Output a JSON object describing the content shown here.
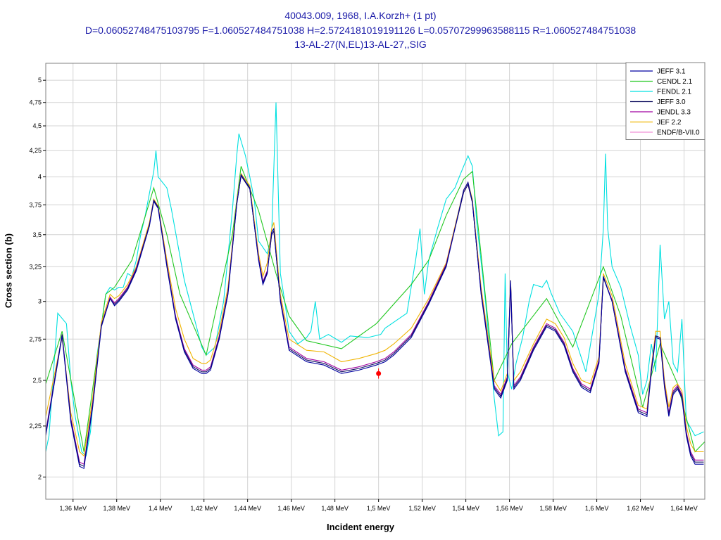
{
  "title_lines": [
    "40043.009, 1968, I.A.Korzh+ (1 pt)",
    "D=0.06052748475103795 F=1.060527484751038 H=2.5724181019191126 L=0.05707299963588115 R=1.060527484751038",
    "13-AL-27(N,EL)13-AL-27,,SIG"
  ],
  "chart_data": {
    "type": "line",
    "title": "40043.009, 1968, I.A.Korzh+ (1 pt)",
    "xlabel": "Incident energy",
    "ylabel": "Cross section (b)",
    "xlim": [
      1.3475,
      1.6495
    ],
    "ylim": [
      1.9,
      5.2
    ],
    "y_scale": "log",
    "grid": true,
    "legend_position": "top-right",
    "x_ticks": [
      1.36,
      1.38,
      1.4,
      1.42,
      1.44,
      1.46,
      1.48,
      1.5,
      1.52,
      1.54,
      1.56,
      1.58,
      1.6,
      1.62,
      1.64
    ],
    "x_tick_labels": [
      "1,36 MeV",
      "1,38 MeV",
      "1,4 MeV",
      "1,42 MeV",
      "1,44 MeV",
      "1,46 MeV",
      "1,48 MeV",
      "1,5 MeV",
      "1,52 MeV",
      "1,54 MeV",
      "1,56 MeV",
      "1,58 MeV",
      "1,6 MeV",
      "1,62 MeV",
      "1,64 MeV"
    ],
    "y_ticks": [
      2,
      2.25,
      2.5,
      2.75,
      3,
      3.25,
      3.5,
      3.75,
      4,
      4.25,
      4.5,
      4.75,
      5
    ],
    "y_tick_labels": [
      "2",
      "2,25",
      "2,5",
      "2,75",
      "3",
      "3,25",
      "3,5",
      "3,75",
      "4",
      "4,25",
      "4,5",
      "4,75",
      "5"
    ],
    "series": [
      {
        "name": "JEFF 3.1",
        "color": "#0000a0",
        "x": [
          1.3475,
          1.355,
          1.359,
          1.363,
          1.365,
          1.369,
          1.373,
          1.377,
          1.379,
          1.381,
          1.385,
          1.389,
          1.395,
          1.397,
          1.399,
          1.403,
          1.407,
          1.411,
          1.415,
          1.419,
          1.421,
          1.423,
          1.427,
          1.431,
          1.435,
          1.437,
          1.441,
          1.445,
          1.447,
          1.449,
          1.451,
          1.452,
          1.455,
          1.459,
          1.467,
          1.475,
          1.483,
          1.491,
          1.499,
          1.503,
          1.507,
          1.515,
          1.523,
          1.531,
          1.539,
          1.541,
          1.543,
          1.547,
          1.553,
          1.556,
          1.559,
          1.5605,
          1.562,
          1.565,
          1.571,
          1.577,
          1.581,
          1.585,
          1.589,
          1.593,
          1.597,
          1.601,
          1.603,
          1.607,
          1.613,
          1.619,
          1.623,
          1.625,
          1.627,
          1.629,
          1.631,
          1.633,
          1.635,
          1.637,
          1.639,
          1.641,
          1.643,
          1.645,
          1.649
        ],
        "y": [
          2.2,
          2.77,
          2.27,
          2.05,
          2.04,
          2.35,
          2.83,
          3.02,
          2.97,
          3.0,
          3.08,
          3.22,
          3.57,
          3.78,
          3.72,
          3.25,
          2.88,
          2.67,
          2.57,
          2.54,
          2.54,
          2.56,
          2.75,
          3.05,
          3.75,
          4.02,
          3.9,
          3.3,
          3.12,
          3.2,
          3.52,
          3.55,
          3.0,
          2.68,
          2.61,
          2.59,
          2.54,
          2.56,
          2.59,
          2.61,
          2.65,
          2.76,
          2.98,
          3.25,
          3.88,
          3.95,
          3.78,
          3.05,
          2.45,
          2.4,
          2.5,
          3.15,
          2.45,
          2.5,
          2.68,
          2.83,
          2.8,
          2.71,
          2.55,
          2.46,
          2.43,
          2.6,
          3.18,
          3.0,
          2.55,
          2.32,
          2.3,
          2.55,
          2.76,
          2.75,
          2.46,
          2.3,
          2.42,
          2.45,
          2.4,
          2.2,
          2.1,
          2.06,
          2.06
        ]
      },
      {
        "name": "CENDL 2.1",
        "color": "#22c822",
        "x": [
          1.3475,
          1.355,
          1.365,
          1.375,
          1.379,
          1.387,
          1.397,
          1.403,
          1.409,
          1.421,
          1.433,
          1.437,
          1.445,
          1.453,
          1.459,
          1.467,
          1.483,
          1.499,
          1.515,
          1.523,
          1.531,
          1.539,
          1.543,
          1.553,
          1.561,
          1.577,
          1.589,
          1.603,
          1.611,
          1.621,
          1.629,
          1.637,
          1.645,
          1.6495
        ],
        "y": [
          2.48,
          2.8,
          2.12,
          3.05,
          3.1,
          3.3,
          3.9,
          3.5,
          3.05,
          2.65,
          3.5,
          4.1,
          3.7,
          3.2,
          2.9,
          2.74,
          2.69,
          2.85,
          3.12,
          3.3,
          3.66,
          3.98,
          4.05,
          2.5,
          2.72,
          3.02,
          2.7,
          3.25,
          2.9,
          2.35,
          2.72,
          2.48,
          2.12,
          2.17
        ]
      },
      {
        "name": "FENDL 2.1",
        "color": "#00e0e0",
        "x": [
          1.3475,
          1.349,
          1.353,
          1.357,
          1.359,
          1.361,
          1.364,
          1.366,
          1.368,
          1.371,
          1.375,
          1.377,
          1.379,
          1.381,
          1.383,
          1.385,
          1.387,
          1.389,
          1.391,
          1.393,
          1.395,
          1.397,
          1.398,
          1.399,
          1.403,
          1.405,
          1.411,
          1.419,
          1.421,
          1.425,
          1.429,
          1.433,
          1.435,
          1.436,
          1.439,
          1.441,
          1.443,
          1.445,
          1.449,
          1.451,
          1.453,
          1.455,
          1.457,
          1.459,
          1.463,
          1.467,
          1.469,
          1.471,
          1.473,
          1.477,
          1.483,
          1.487,
          1.495,
          1.501,
          1.503,
          1.509,
          1.513,
          1.517,
          1.519,
          1.521,
          1.523,
          1.527,
          1.531,
          1.535,
          1.537,
          1.539,
          1.541,
          1.543,
          1.545,
          1.549,
          1.553,
          1.555,
          1.557,
          1.558,
          1.559,
          1.561,
          1.563,
          1.566,
          1.569,
          1.571,
          1.575,
          1.577,
          1.579,
          1.583,
          1.589,
          1.595,
          1.601,
          1.603,
          1.604,
          1.605,
          1.607,
          1.611,
          1.615,
          1.619,
          1.621,
          1.623,
          1.625,
          1.627,
          1.629,
          1.631,
          1.633,
          1.635,
          1.637,
          1.639,
          1.641,
          1.645,
          1.649
        ],
        "y": [
          2.12,
          2.2,
          2.92,
          2.85,
          2.5,
          2.3,
          2.12,
          2.1,
          2.22,
          2.65,
          3.05,
          3.1,
          3.08,
          3.1,
          3.1,
          3.2,
          3.18,
          3.3,
          3.5,
          3.65,
          3.85,
          4.05,
          4.25,
          4.0,
          3.9,
          3.72,
          3.15,
          2.7,
          2.65,
          2.7,
          3.0,
          3.7,
          4.2,
          4.42,
          4.2,
          4.0,
          3.8,
          3.45,
          3.35,
          3.5,
          4.75,
          3.2,
          3.0,
          2.8,
          2.72,
          2.76,
          2.8,
          3.0,
          2.75,
          2.78,
          2.73,
          2.77,
          2.76,
          2.78,
          2.82,
          2.88,
          2.92,
          3.3,
          3.55,
          3.05,
          3.3,
          3.55,
          3.8,
          3.9,
          4.0,
          4.1,
          4.2,
          4.1,
          3.6,
          3.0,
          2.4,
          2.2,
          2.22,
          3.2,
          2.55,
          2.45,
          2.6,
          2.76,
          3.0,
          3.12,
          3.1,
          3.15,
          3.06,
          2.92,
          2.8,
          2.55,
          3.05,
          3.55,
          4.22,
          3.55,
          3.25,
          3.1,
          2.85,
          2.65,
          2.42,
          2.5,
          2.72,
          2.55,
          3.42,
          2.88,
          3.0,
          2.6,
          2.55,
          2.88,
          2.28,
          2.2,
          2.22
        ]
      },
      {
        "name": "JEFF 3.0",
        "color": "#101060",
        "x": [
          1.3475,
          1.355,
          1.359,
          1.363,
          1.365,
          1.369,
          1.373,
          1.377,
          1.379,
          1.381,
          1.385,
          1.389,
          1.395,
          1.397,
          1.399,
          1.403,
          1.407,
          1.411,
          1.415,
          1.419,
          1.421,
          1.423,
          1.427,
          1.431,
          1.435,
          1.437,
          1.441,
          1.445,
          1.447,
          1.449,
          1.451,
          1.452,
          1.455,
          1.459,
          1.467,
          1.475,
          1.483,
          1.491,
          1.499,
          1.503,
          1.507,
          1.515,
          1.523,
          1.531,
          1.539,
          1.541,
          1.543,
          1.547,
          1.553,
          1.556,
          1.559,
          1.5605,
          1.562,
          1.565,
          1.571,
          1.577,
          1.581,
          1.585,
          1.589,
          1.593,
          1.597,
          1.601,
          1.603,
          1.607,
          1.613,
          1.619,
          1.623,
          1.625,
          1.627,
          1.629,
          1.631,
          1.633,
          1.635,
          1.637,
          1.639,
          1.641,
          1.643,
          1.645,
          1.649
        ],
        "y": [
          2.21,
          2.78,
          2.28,
          2.06,
          2.05,
          2.36,
          2.84,
          3.02,
          2.98,
          3.01,
          3.09,
          3.23,
          3.58,
          3.79,
          3.73,
          3.26,
          2.89,
          2.68,
          2.58,
          2.55,
          2.55,
          2.57,
          2.76,
          3.06,
          3.76,
          4.01,
          3.89,
          3.31,
          3.13,
          3.21,
          3.5,
          3.53,
          3.01,
          2.69,
          2.62,
          2.6,
          2.55,
          2.57,
          2.6,
          2.62,
          2.66,
          2.77,
          2.99,
          3.26,
          3.86,
          3.93,
          3.77,
          3.06,
          2.46,
          2.41,
          2.51,
          3.13,
          2.46,
          2.51,
          2.69,
          2.84,
          2.81,
          2.72,
          2.56,
          2.47,
          2.44,
          2.61,
          3.17,
          3.0,
          2.56,
          2.33,
          2.31,
          2.56,
          2.77,
          2.76,
          2.47,
          2.31,
          2.43,
          2.46,
          2.41,
          2.21,
          2.11,
          2.07,
          2.07
        ]
      },
      {
        "name": "JENDL 3.3",
        "color": "#a000a0",
        "x": [
          1.3475,
          1.355,
          1.359,
          1.363,
          1.365,
          1.369,
          1.373,
          1.377,
          1.379,
          1.381,
          1.385,
          1.389,
          1.395,
          1.397,
          1.399,
          1.403,
          1.407,
          1.411,
          1.415,
          1.419,
          1.421,
          1.423,
          1.427,
          1.431,
          1.435,
          1.437,
          1.441,
          1.445,
          1.447,
          1.449,
          1.451,
          1.452,
          1.455,
          1.459,
          1.467,
          1.475,
          1.483,
          1.491,
          1.499,
          1.503,
          1.507,
          1.515,
          1.523,
          1.531,
          1.539,
          1.541,
          1.543,
          1.547,
          1.553,
          1.556,
          1.559,
          1.5605,
          1.562,
          1.565,
          1.571,
          1.577,
          1.581,
          1.585,
          1.589,
          1.593,
          1.597,
          1.601,
          1.603,
          1.607,
          1.613,
          1.619,
          1.623,
          1.625,
          1.627,
          1.629,
          1.631,
          1.633,
          1.635,
          1.637,
          1.639,
          1.641,
          1.643,
          1.645,
          1.649
        ],
        "y": [
          2.22,
          2.78,
          2.29,
          2.07,
          2.06,
          2.37,
          2.84,
          3.03,
          2.99,
          3.02,
          3.1,
          3.24,
          3.58,
          3.79,
          3.73,
          3.27,
          2.9,
          2.69,
          2.59,
          2.56,
          2.56,
          2.58,
          2.77,
          3.07,
          3.76,
          4.01,
          3.89,
          3.32,
          3.14,
          3.22,
          3.5,
          3.53,
          3.02,
          2.7,
          2.63,
          2.61,
          2.56,
          2.58,
          2.61,
          2.63,
          2.67,
          2.78,
          3.0,
          3.27,
          3.86,
          3.93,
          3.77,
          3.07,
          2.47,
          2.42,
          2.52,
          3.12,
          2.47,
          2.52,
          2.7,
          2.85,
          2.82,
          2.73,
          2.57,
          2.48,
          2.45,
          2.62,
          3.17,
          3.01,
          2.57,
          2.34,
          2.32,
          2.57,
          2.77,
          2.76,
          2.48,
          2.32,
          2.44,
          2.47,
          2.42,
          2.22,
          2.12,
          2.08,
          2.08
        ]
      },
      {
        "name": "JEF 2.2",
        "color": "#f0b400",
        "x": [
          1.3475,
          1.355,
          1.359,
          1.363,
          1.365,
          1.369,
          1.373,
          1.377,
          1.379,
          1.381,
          1.385,
          1.389,
          1.395,
          1.397,
          1.399,
          1.403,
          1.407,
          1.411,
          1.415,
          1.419,
          1.421,
          1.423,
          1.427,
          1.431,
          1.435,
          1.437,
          1.441,
          1.445,
          1.447,
          1.449,
          1.451,
          1.452,
          1.455,
          1.459,
          1.467,
          1.475,
          1.483,
          1.491,
          1.499,
          1.503,
          1.507,
          1.515,
          1.523,
          1.531,
          1.539,
          1.541,
          1.543,
          1.547,
          1.553,
          1.556,
          1.559,
          1.5605,
          1.562,
          1.565,
          1.571,
          1.577,
          1.581,
          1.585,
          1.589,
          1.593,
          1.597,
          1.601,
          1.603,
          1.607,
          1.613,
          1.619,
          1.623,
          1.625,
          1.627,
          1.629,
          1.631,
          1.633,
          1.635,
          1.637,
          1.639,
          1.641,
          1.643,
          1.645,
          1.649
        ],
        "y": [
          2.3,
          2.76,
          2.32,
          2.12,
          2.1,
          2.4,
          2.86,
          3.05,
          3.02,
          3.04,
          3.12,
          3.25,
          3.6,
          3.8,
          3.74,
          3.3,
          2.95,
          2.75,
          2.63,
          2.6,
          2.6,
          2.62,
          2.8,
          3.1,
          3.78,
          4.03,
          3.92,
          3.35,
          3.18,
          3.28,
          3.55,
          3.6,
          3.05,
          2.75,
          2.68,
          2.67,
          2.61,
          2.63,
          2.66,
          2.68,
          2.72,
          2.82,
          3.02,
          3.28,
          3.88,
          3.95,
          3.8,
          3.1,
          2.5,
          2.44,
          2.54,
          3.15,
          2.5,
          2.55,
          2.72,
          2.88,
          2.85,
          2.76,
          2.6,
          2.5,
          2.48,
          2.64,
          3.2,
          3.04,
          2.6,
          2.36,
          2.34,
          2.58,
          2.8,
          2.8,
          2.5,
          2.35,
          2.46,
          2.48,
          2.44,
          2.25,
          2.16,
          2.12,
          2.12
        ]
      },
      {
        "name": "ENDF/B-VII.0",
        "color": "#f090d8",
        "x": [],
        "y": []
      }
    ],
    "points": [
      {
        "x": 1.5,
        "y": 2.54,
        "dy_minus": 0.03,
        "dy_plus": 0.03,
        "color": "#ff0000"
      }
    ]
  }
}
